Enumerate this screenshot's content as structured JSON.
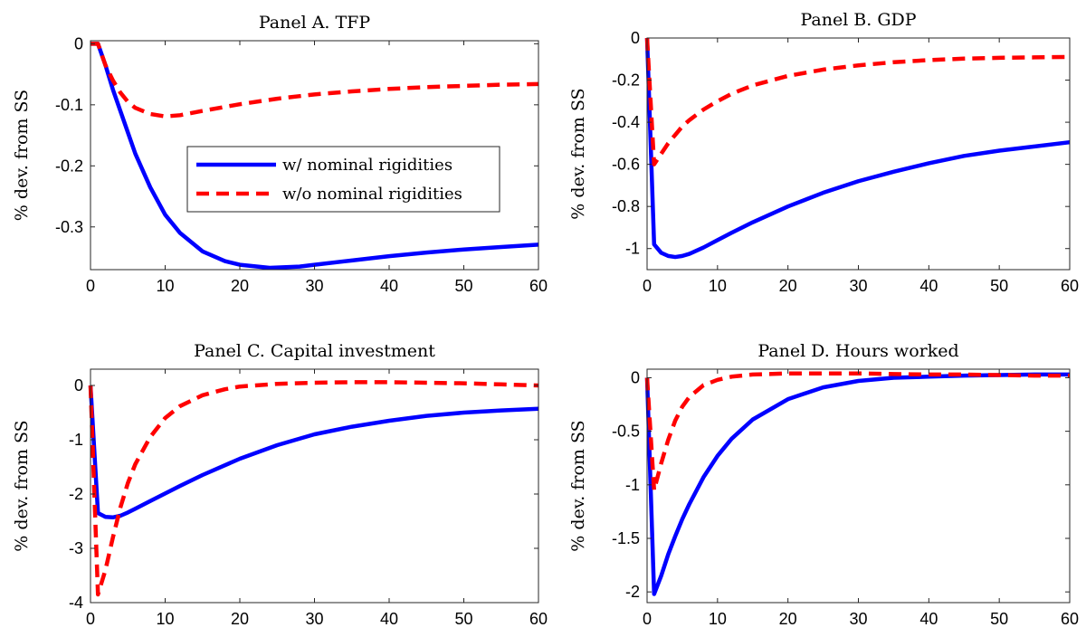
{
  "chart_data": [
    {
      "type": "line",
      "title": "Panel A. TFP",
      "ylabel": "% dev. from SS",
      "xlabel": "",
      "xlim": [
        0,
        60
      ],
      "ylim": [
        -0.37,
        0.005
      ],
      "xticks": [
        0,
        10,
        20,
        30,
        40,
        50,
        60
      ],
      "yticks": [
        0,
        -0.1,
        -0.2,
        -0.3
      ],
      "ytick_labels": [
        "0",
        "-0.1",
        "-0.2",
        "-0.3"
      ],
      "legend": {
        "position": "center-right",
        "entries": [
          "w/ nominal rigidities",
          "w/o nominal rigidities"
        ]
      },
      "series": [
        {
          "name": "w/ nominal rigidities",
          "color": "#0000ff",
          "style": "solid",
          "x": [
            0,
            1,
            2,
            3,
            4,
            5,
            6,
            8,
            10,
            12,
            15,
            18,
            20,
            24,
            28,
            30,
            35,
            40,
            45,
            50,
            55,
            60
          ],
          "y": [
            0,
            0,
            -0.035,
            -0.075,
            -0.11,
            -0.145,
            -0.18,
            -0.235,
            -0.28,
            -0.31,
            -0.34,
            -0.356,
            -0.362,
            -0.367,
            -0.365,
            -0.362,
            -0.355,
            -0.348,
            -0.342,
            -0.337,
            -0.333,
            -0.329
          ]
        },
        {
          "name": "w/o nominal rigidities",
          "color": "#ff0000",
          "style": "dashed",
          "x": [
            0,
            1,
            2,
            3,
            4,
            5,
            6,
            8,
            10,
            12,
            15,
            20,
            25,
            30,
            35,
            40,
            45,
            50,
            55,
            60
          ],
          "y": [
            0,
            0,
            -0.035,
            -0.06,
            -0.08,
            -0.095,
            -0.105,
            -0.115,
            -0.119,
            -0.117,
            -0.11,
            -0.099,
            -0.09,
            -0.083,
            -0.078,
            -0.074,
            -0.071,
            -0.069,
            -0.067,
            -0.066
          ]
        }
      ]
    },
    {
      "type": "line",
      "title": "Panel B. GDP",
      "ylabel": "% dev. from SS",
      "xlabel": "",
      "xlim": [
        0,
        60
      ],
      "ylim": [
        -1.1,
        0
      ],
      "xticks": [
        0,
        10,
        20,
        30,
        40,
        50,
        60
      ],
      "yticks": [
        0,
        -0.2,
        -0.4,
        -0.6,
        -0.8,
        -1
      ],
      "ytick_labels": [
        "0",
        "-0.2",
        "-0.4",
        "-0.6",
        "-0.8",
        "-1"
      ],
      "series": [
        {
          "name": "w/ nominal rigidities",
          "color": "#0000ff",
          "style": "solid",
          "x": [
            0,
            1,
            2,
            3,
            4,
            5,
            6,
            8,
            10,
            12,
            15,
            20,
            25,
            30,
            35,
            40,
            45,
            50,
            55,
            60
          ],
          "y": [
            0,
            -0.98,
            -1.02,
            -1.035,
            -1.04,
            -1.035,
            -1.025,
            -0.995,
            -0.96,
            -0.925,
            -0.875,
            -0.8,
            -0.735,
            -0.68,
            -0.635,
            -0.595,
            -0.56,
            -0.535,
            -0.515,
            -0.495
          ]
        },
        {
          "name": "w/o nominal rigidities",
          "color": "#ff0000",
          "style": "dashed",
          "x": [
            0,
            1,
            2,
            3,
            4,
            5,
            6,
            8,
            10,
            12,
            15,
            20,
            25,
            30,
            35,
            40,
            45,
            50,
            55,
            60
          ],
          "y": [
            0,
            -0.6,
            -0.55,
            -0.5,
            -0.46,
            -0.42,
            -0.39,
            -0.34,
            -0.3,
            -0.265,
            -0.225,
            -0.18,
            -0.15,
            -0.13,
            -0.115,
            -0.105,
            -0.098,
            -0.094,
            -0.092,
            -0.09
          ]
        }
      ]
    },
    {
      "type": "line",
      "title": "Panel C. Capital investment",
      "ylabel": "% dev. from SS",
      "xlabel": "",
      "xlim": [
        0,
        60
      ],
      "ylim": [
        -4,
        0.3
      ],
      "xticks": [
        0,
        10,
        20,
        30,
        40,
        50,
        60
      ],
      "yticks": [
        0,
        -1,
        -2,
        -3,
        -4
      ],
      "ytick_labels": [
        "0",
        "-1",
        "-2",
        "-3",
        "-4"
      ],
      "series": [
        {
          "name": "w/ nominal rigidities",
          "color": "#0000ff",
          "style": "solid",
          "x": [
            0,
            1,
            2,
            3,
            4,
            5,
            6,
            8,
            10,
            12,
            15,
            20,
            25,
            30,
            35,
            40,
            45,
            50,
            55,
            60
          ],
          "y": [
            0,
            -2.35,
            -2.42,
            -2.43,
            -2.4,
            -2.34,
            -2.27,
            -2.13,
            -1.99,
            -1.85,
            -1.65,
            -1.35,
            -1.1,
            -0.9,
            -0.76,
            -0.65,
            -0.56,
            -0.5,
            -0.46,
            -0.43
          ]
        },
        {
          "name": "w/o nominal rigidities",
          "color": "#ff0000",
          "style": "dashed",
          "x": [
            0,
            1,
            2,
            3,
            4,
            5,
            6,
            8,
            10,
            12,
            15,
            18,
            20,
            25,
            30,
            35,
            40,
            45,
            50,
            55,
            60
          ],
          "y": [
            0,
            -3.85,
            -3.4,
            -2.8,
            -2.25,
            -1.8,
            -1.45,
            -0.95,
            -0.6,
            -0.38,
            -0.18,
            -0.07,
            -0.02,
            0.03,
            0.05,
            0.06,
            0.06,
            0.05,
            0.04,
            0.02,
            0
          ]
        }
      ]
    },
    {
      "type": "line",
      "title": "Panel D. Hours worked",
      "ylabel": "% dev. from SS",
      "xlabel": "",
      "xlim": [
        0,
        60
      ],
      "ylim": [
        -2.1,
        0.08
      ],
      "xticks": [
        0,
        10,
        20,
        30,
        40,
        50,
        60
      ],
      "yticks": [
        0,
        -0.5,
        -1,
        -1.5,
        -2
      ],
      "ytick_labels": [
        "0",
        "-0.5",
        "-1",
        "-1.5",
        "-2"
      ],
      "series": [
        {
          "name": "w/ nominal rigidities",
          "color": "#0000ff",
          "style": "solid",
          "x": [
            0,
            1,
            2,
            3,
            4,
            5,
            6,
            8,
            10,
            12,
            15,
            20,
            25,
            30,
            35,
            40,
            45,
            50,
            55,
            60
          ],
          "y": [
            0,
            -2.02,
            -1.85,
            -1.65,
            -1.48,
            -1.32,
            -1.18,
            -0.93,
            -0.73,
            -0.57,
            -0.39,
            -0.2,
            -0.09,
            -0.03,
            0,
            0.01,
            0.02,
            0.025,
            0.03,
            0.03
          ]
        },
        {
          "name": "w/o nominal rigidities",
          "color": "#ff0000",
          "style": "dashed",
          "x": [
            0,
            1,
            2,
            3,
            4,
            5,
            6,
            8,
            10,
            12,
            15,
            20,
            25,
            30,
            35,
            40,
            45,
            50,
            55,
            60
          ],
          "y": [
            0,
            -1.05,
            -0.8,
            -0.58,
            -0.4,
            -0.27,
            -0.18,
            -0.07,
            -0.02,
            0.01,
            0.03,
            0.04,
            0.04,
            0.04,
            0.035,
            0.03,
            0.03,
            0.025,
            0.02,
            0.02
          ]
        }
      ]
    }
  ]
}
